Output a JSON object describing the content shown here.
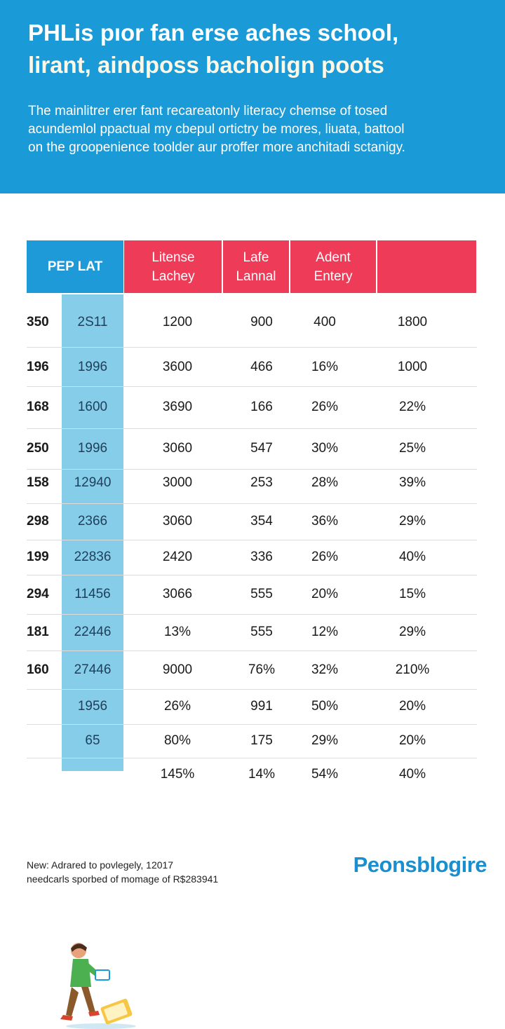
{
  "header": {
    "title_line1": "PHLis pıor fan erse aches school,",
    "title_line2": "lirant, aindposs bacholign poots",
    "description": [
      "The mainlitrer erer fant recareatonly literacy chemse of tosed",
      "acundemlol ppactual my cbepul ortictry be mores, liuata, battool",
      "on the groopenience toolder aur proffer more anchitadi sctanigy."
    ],
    "bg_color": "#1a9ad6"
  },
  "table": {
    "left_header": "PEP LAT",
    "columns": [
      {
        "line1": "Litense",
        "line2": "Lachey"
      },
      {
        "line1": "Lafe",
        "line2": "Lannal"
      },
      {
        "line1": "Adent",
        "line2": "Entery"
      },
      {
        "line1": "",
        "line2": ""
      }
    ],
    "header_colors": {
      "left": "#1f9ad8",
      "right": "#ee3b58"
    },
    "rows": [
      [
        "350",
        "2S11",
        "1200",
        "900",
        "400",
        "1800"
      ],
      [
        "196",
        "1996",
        "3600",
        "466",
        "16%",
        "1000"
      ],
      [
        "168",
        "1600",
        "3690",
        "166",
        "26%",
        "22%"
      ],
      [
        "250",
        "1996",
        "3060",
        "547",
        "30%",
        "25%"
      ],
      [
        "158",
        "12940",
        "3000",
        "253",
        "28%",
        "39%"
      ],
      [
        "298",
        "2366",
        "3060",
        "354",
        "36%",
        "29%"
      ],
      [
        "199",
        "22836",
        "2420",
        "336",
        "26%",
        "40%"
      ],
      [
        "294",
        "11456",
        "3066",
        "555",
        "20%",
        "15%"
      ],
      [
        "181",
        "22446",
        "13%",
        "555",
        "12%",
        "29%"
      ],
      [
        "160",
        "27446",
        "9000",
        "76%",
        "32%",
        "210%"
      ],
      [
        "",
        "1956",
        "26%",
        "991",
        "50%",
        "20%"
      ],
      [
        "",
        "65",
        "80%",
        "175",
        "29%",
        "20%"
      ],
      [
        "",
        "",
        "145%",
        "14%",
        "54%",
        "40%"
      ]
    ]
  },
  "footer": {
    "note_line1": "New: Adrared to povlegely, 12017",
    "note_line2": "needcarls sporbed of momage of R$283941",
    "brand": "Peonsblogire"
  },
  "illustration": "reading-person-icon"
}
